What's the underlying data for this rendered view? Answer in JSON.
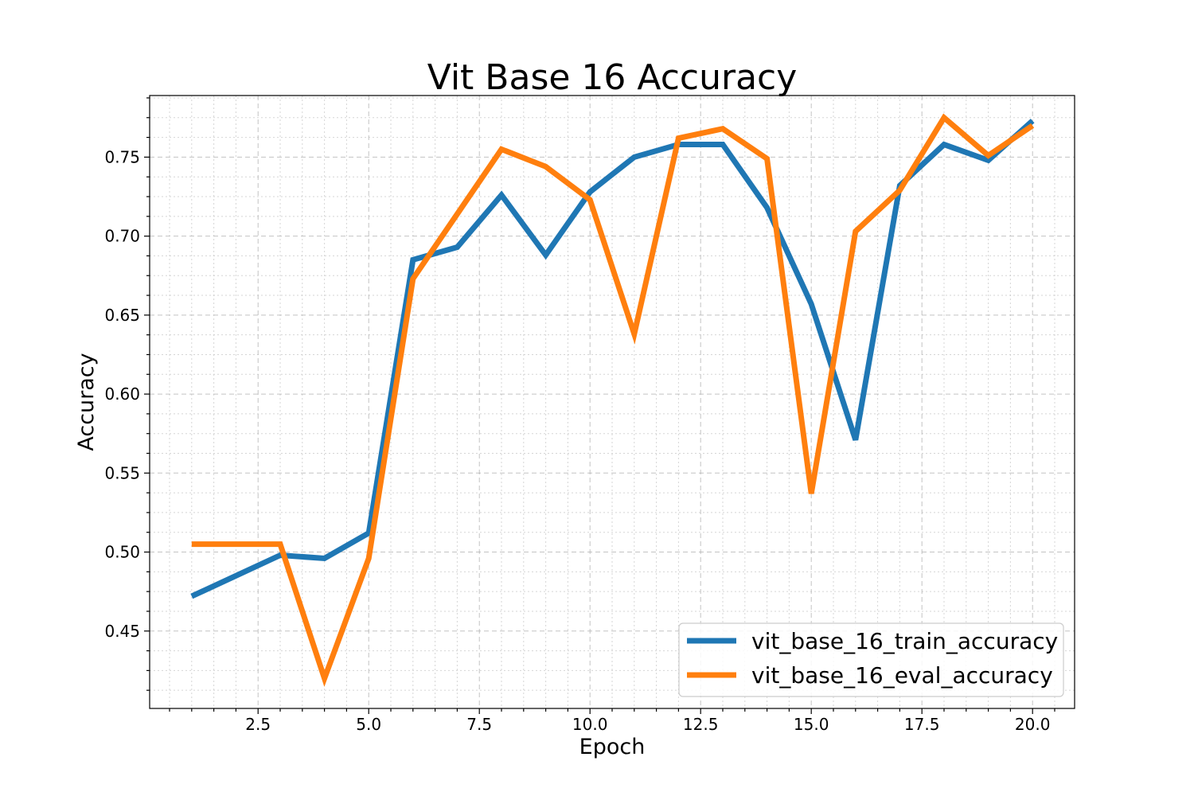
{
  "chart_data": {
    "type": "line",
    "title": "Vit Base 16 Accuracy",
    "xlabel": "Epoch",
    "ylabel": "Accuracy",
    "xlim": [
      0.05,
      20.95
    ],
    "ylim": [
      0.401,
      0.789
    ],
    "x_ticks": [
      2.5,
      5.0,
      7.5,
      10.0,
      12.5,
      15.0,
      17.5,
      20.0
    ],
    "x_tick_labels": [
      "2.5",
      "5.0",
      "7.5",
      "10.0",
      "12.5",
      "15.0",
      "17.5",
      "20.0"
    ],
    "x_minor_step": 0.5,
    "y_ticks": [
      0.45,
      0.5,
      0.55,
      0.6,
      0.65,
      0.7,
      0.75
    ],
    "y_tick_labels": [
      "0.45",
      "0.50",
      "0.55",
      "0.60",
      "0.65",
      "0.70",
      "0.75"
    ],
    "y_minor_step": 0.0125,
    "grid": true,
    "legend_position": "lower-right",
    "x": [
      1,
      2,
      3,
      4,
      5,
      6,
      7,
      8,
      9,
      10,
      11,
      12,
      13,
      14,
      15,
      16,
      17,
      18,
      19,
      20
    ],
    "series": [
      {
        "name": "vit_base_16_train_accuracy",
        "color": "#1f77b4",
        "values": [
          0.472,
          0.485,
          0.498,
          0.496,
          0.512,
          0.685,
          0.693,
          0.726,
          0.688,
          0.728,
          0.75,
          0.758,
          0.758,
          0.718,
          0.657,
          0.571,
          0.732,
          0.758,
          0.748,
          0.773
        ]
      },
      {
        "name": "vit_base_16_eval_accuracy",
        "color": "#ff7f0e",
        "values": [
          0.505,
          0.505,
          0.505,
          0.42,
          0.496,
          0.673,
          0.714,
          0.755,
          0.744,
          0.723,
          0.638,
          0.762,
          0.768,
          0.749,
          0.537,
          0.703,
          0.729,
          0.775,
          0.751,
          0.77
        ]
      }
    ]
  }
}
